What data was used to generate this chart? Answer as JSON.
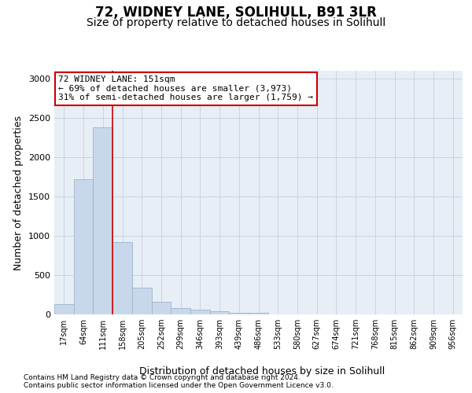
{
  "title1": "72, WIDNEY LANE, SOLIHULL, B91 3LR",
  "title2": "Size of property relative to detached houses in Solihull",
  "xlabel": "Distribution of detached houses by size in Solihull",
  "ylabel": "Number of detached properties",
  "footnote1": "Contains HM Land Registry data © Crown copyright and database right 2024.",
  "footnote2": "Contains public sector information licensed under the Open Government Licence v3.0.",
  "bar_labels": [
    "17sqm",
    "64sqm",
    "111sqm",
    "158sqm",
    "205sqm",
    "252sqm",
    "299sqm",
    "346sqm",
    "393sqm",
    "439sqm",
    "486sqm",
    "533sqm",
    "580sqm",
    "627sqm",
    "674sqm",
    "721sqm",
    "768sqm",
    "815sqm",
    "862sqm",
    "909sqm",
    "956sqm"
  ],
  "bar_values": [
    130,
    1720,
    2380,
    920,
    340,
    160,
    85,
    65,
    45,
    25,
    25,
    5,
    5,
    0,
    0,
    0,
    0,
    0,
    0,
    0,
    0
  ],
  "bar_color": "#c8d8ea",
  "bar_edge_color": "#9ab4cc",
  "vline_color": "#cc0000",
  "vline_x": 2.5,
  "ylim": [
    0,
    3100
  ],
  "yticks": [
    0,
    500,
    1000,
    1500,
    2000,
    2500,
    3000
  ],
  "annotation_line1": "72 WIDNEY LANE: 151sqm",
  "annotation_line2": "← 69% of detached houses are smaller (3,973)",
  "annotation_line3": "31% of semi-detached houses are larger (1,759) →",
  "annotation_box_color": "#ffffff",
  "annotation_box_edge": "#cc0000",
  "grid_color": "#c8d4e4",
  "background_color": "#e8eef6",
  "title1_fontsize": 12,
  "title2_fontsize": 10,
  "ylabel_fontsize": 9,
  "xlabel_fontsize": 9,
  "tick_fontsize": 8,
  "xtick_fontsize": 7,
  "ann_fontsize": 8,
  "footnote_fontsize": 6.5
}
